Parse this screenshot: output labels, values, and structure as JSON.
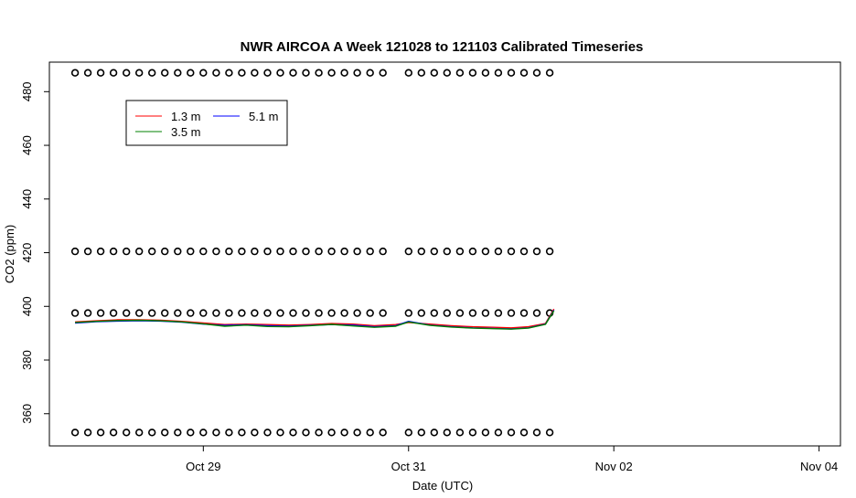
{
  "chart_data": {
    "type": "line",
    "title": "NWR AIRCOA A  Week 121028 to 121103  Calibrated Timeseries",
    "xlabel": "Date (UTC)",
    "ylabel": "CO2 (ppm)",
    "x_ticks": [
      {
        "date": "2012-10-29",
        "label": "Oct 29"
      },
      {
        "date": "2012-10-31",
        "label": "Oct 31"
      },
      {
        "date": "2012-11-02",
        "label": "Nov 02"
      },
      {
        "date": "2012-11-04",
        "label": "Nov 04"
      }
    ],
    "y_ticks": [
      360,
      380,
      400,
      420,
      440,
      460,
      480
    ],
    "xlim": [
      "2012-10-27T12:00",
      "2012-11-04T05:00"
    ],
    "ylim": [
      348,
      491
    ],
    "grid": false,
    "legend": {
      "placement": "top-left",
      "entries": [
        {
          "label": "1.3 m",
          "color": "#ff0000"
        },
        {
          "label": "5.1 m",
          "color": "#0000ff"
        },
        {
          "label": "3.5 m",
          "color": "#008000"
        }
      ]
    },
    "series": [
      {
        "name": "1.3 m",
        "color": "#ff0000",
        "points": [
          [
            "2012-10-27T18:00",
            394.2
          ],
          [
            "2012-10-27T23:00",
            394.6
          ],
          [
            "2012-10-28T04:00",
            395.0
          ],
          [
            "2012-10-28T09:00",
            395.0
          ],
          [
            "2012-10-28T14:00",
            394.8
          ],
          [
            "2012-10-28T19:00",
            394.4
          ],
          [
            "2012-10-29T00:00",
            393.8
          ],
          [
            "2012-10-29T05:00",
            393.2
          ],
          [
            "2012-10-29T10:00",
            393.4
          ],
          [
            "2012-10-29T15:00",
            393.2
          ],
          [
            "2012-10-29T20:00",
            393.0
          ],
          [
            "2012-10-30T01:00",
            393.2
          ],
          [
            "2012-10-30T06:00",
            393.6
          ],
          [
            "2012-10-30T11:00",
            393.4
          ],
          [
            "2012-10-30T16:00",
            392.8
          ],
          [
            "2012-10-30T21:00",
            393.2
          ],
          [
            "2012-10-31T00:00",
            394.0
          ],
          [
            "2012-10-31T05:00",
            393.4
          ],
          [
            "2012-10-31T10:00",
            392.8
          ],
          [
            "2012-10-31T15:00",
            392.4
          ],
          [
            "2012-10-31T20:00",
            392.2
          ],
          [
            "2012-11-01T00:00",
            392.0
          ],
          [
            "2012-11-01T04:00",
            392.4
          ],
          [
            "2012-11-01T08:00",
            393.6
          ],
          [
            "2012-11-01T10:00",
            399.0
          ]
        ]
      },
      {
        "name": "5.1 m",
        "color": "#0000ff",
        "points": [
          [
            "2012-10-27T18:00",
            393.8
          ],
          [
            "2012-10-27T23:00",
            394.3
          ],
          [
            "2012-10-28T04:00",
            394.5
          ],
          [
            "2012-10-28T09:00",
            394.6
          ],
          [
            "2012-10-28T14:00",
            394.5
          ],
          [
            "2012-10-28T19:00",
            394.1
          ],
          [
            "2012-10-29T00:00",
            393.4
          ],
          [
            "2012-10-29T05:00",
            392.9
          ],
          [
            "2012-10-29T10:00",
            393.1
          ],
          [
            "2012-10-29T15:00",
            392.8
          ],
          [
            "2012-10-29T20:00",
            392.6
          ],
          [
            "2012-10-30T01:00",
            392.9
          ],
          [
            "2012-10-30T06:00",
            393.2
          ],
          [
            "2012-10-30T11:00",
            393.0
          ],
          [
            "2012-10-30T16:00",
            392.4
          ],
          [
            "2012-10-30T21:00",
            392.8
          ],
          [
            "2012-10-31T00:00",
            394.4
          ],
          [
            "2012-10-31T05:00",
            393.0
          ],
          [
            "2012-10-31T10:00",
            392.4
          ],
          [
            "2012-10-31T15:00",
            392.0
          ],
          [
            "2012-10-31T20:00",
            391.8
          ],
          [
            "2012-11-01T00:00",
            391.6
          ],
          [
            "2012-11-01T04:00",
            392.0
          ],
          [
            "2012-11-01T08:00",
            393.4
          ],
          [
            "2012-11-01T10:00",
            398.6
          ]
        ]
      },
      {
        "name": "3.5 m",
        "color": "#008000",
        "points": [
          [
            "2012-10-27T18:00",
            394.0
          ],
          [
            "2012-10-27T23:00",
            394.4
          ],
          [
            "2012-10-28T04:00",
            394.7
          ],
          [
            "2012-10-28T09:00",
            394.8
          ],
          [
            "2012-10-28T14:00",
            394.6
          ],
          [
            "2012-10-28T19:00",
            394.2
          ],
          [
            "2012-10-29T00:00",
            393.5
          ],
          [
            "2012-10-29T05:00",
            392.6
          ],
          [
            "2012-10-29T10:00",
            393.0
          ],
          [
            "2012-10-29T15:00",
            392.5
          ],
          [
            "2012-10-29T20:00",
            392.4
          ],
          [
            "2012-10-30T01:00",
            392.8
          ],
          [
            "2012-10-30T06:00",
            393.3
          ],
          [
            "2012-10-30T11:00",
            392.7
          ],
          [
            "2012-10-30T16:00",
            392.2
          ],
          [
            "2012-10-30T21:00",
            392.6
          ],
          [
            "2012-10-31T00:00",
            394.2
          ],
          [
            "2012-10-31T05:00",
            392.9
          ],
          [
            "2012-10-31T10:00",
            392.3
          ],
          [
            "2012-10-31T15:00",
            391.9
          ],
          [
            "2012-10-31T20:00",
            391.7
          ],
          [
            "2012-11-01T00:00",
            391.5
          ],
          [
            "2012-11-01T04:00",
            391.9
          ],
          [
            "2012-11-01T08:00",
            393.3
          ],
          [
            "2012-11-01T10:00",
            398.4
          ]
        ]
      }
    ],
    "calibration_points": {
      "marker": "open circle",
      "levels": [
        353,
        397.5,
        420.5,
        487
      ],
      "intervals": [
        [
          "2012-10-27T18:00",
          "2012-10-30T20:00"
        ],
        [
          "2012-10-31T00:00",
          "2012-11-01T10:00"
        ]
      ],
      "spacing_hours": 3
    }
  }
}
